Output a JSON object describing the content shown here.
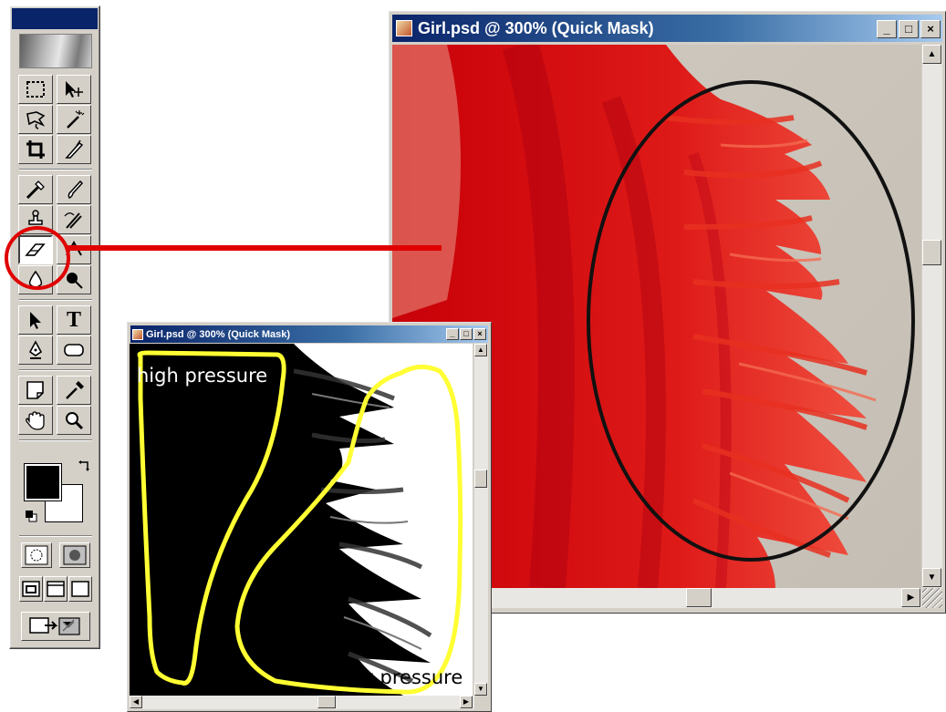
{
  "main_window": {
    "title": "Girl.psd @ 300% (Quick Mask)",
    "buttons": {
      "minimize": "_",
      "maximize": "□",
      "close": "×"
    }
  },
  "small_window": {
    "title": "Girl.psd @ 300% (Quick Mask)",
    "buttons": {
      "minimize": "_",
      "maximize": "□",
      "close": "×"
    },
    "labels": {
      "high": "high pressure",
      "low": "low pressure"
    }
  },
  "toolbox": {
    "tools": [
      {
        "name": "marquee-tool"
      },
      {
        "name": "move-tool"
      },
      {
        "name": "lasso-tool"
      },
      {
        "name": "magic-wand-tool"
      },
      {
        "name": "crop-tool"
      },
      {
        "name": "slice-tool"
      },
      {
        "name": "healing-brush-tool"
      },
      {
        "name": "brush-tool"
      },
      {
        "name": "clone-stamp-tool"
      },
      {
        "name": "history-brush-tool"
      },
      {
        "name": "eraser-tool"
      },
      {
        "name": "gradient-tool"
      },
      {
        "name": "blur-tool"
      },
      {
        "name": "dodge-tool"
      },
      {
        "name": "path-selection-tool"
      },
      {
        "name": "type-tool"
      },
      {
        "name": "pen-tool"
      },
      {
        "name": "shape-tool"
      },
      {
        "name": "notes-tool"
      },
      {
        "name": "eyedropper-tool"
      },
      {
        "name": "hand-tool"
      },
      {
        "name": "zoom-tool"
      }
    ],
    "active_tool": "eraser-tool",
    "type_glyph": "T",
    "foreground_color": "#000000",
    "background_color": "#ffffff"
  },
  "colors": {
    "highlight_red": "#e00000",
    "annotation_yellow": "#ffff33",
    "quick_mask_red": "#e8201c",
    "title_blue": "#0a246a"
  }
}
